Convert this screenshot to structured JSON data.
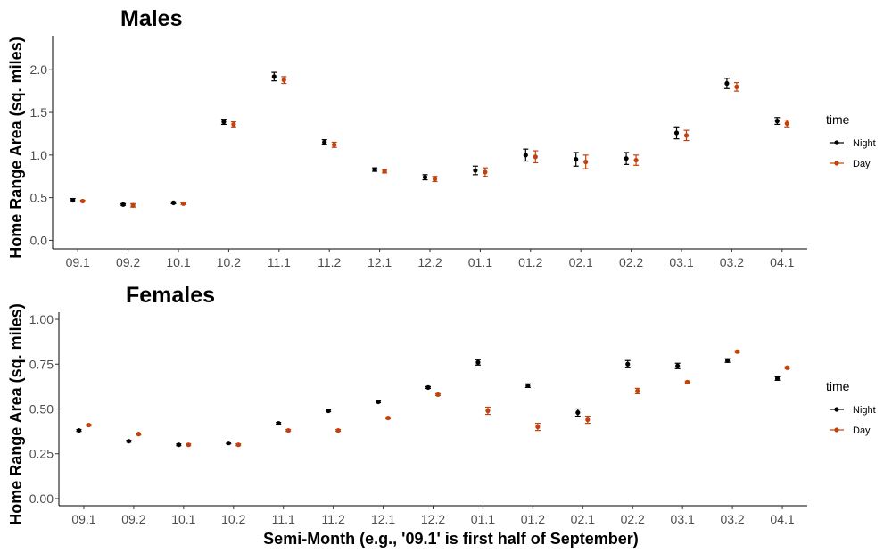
{
  "chart_data": [
    {
      "type": "scatter",
      "title": "Males",
      "ylabel": "Home Range Area (sq. miles)",
      "xlabel": "",
      "categories": [
        "09.1",
        "09.2",
        "10.1",
        "10.2",
        "11.1",
        "11.2",
        "12.1",
        "12.2",
        "01.1",
        "01.2",
        "02.1",
        "02.2",
        "03.1",
        "03.2",
        "04.1"
      ],
      "ylim": [
        -0.1,
        2.4
      ],
      "yticks": [
        0.0,
        0.5,
        1.0,
        1.5,
        2.0
      ],
      "ytick_labels": [
        "0.0",
        "0.5",
        "1.0",
        "1.5",
        "2.0"
      ],
      "legend_title": "time",
      "legend_position": "right",
      "grid": false,
      "series": [
        {
          "name": "Night",
          "color": "#000000",
          "values": [
            0.47,
            0.42,
            0.44,
            1.39,
            1.92,
            1.15,
            0.83,
            0.74,
            0.82,
            1.0,
            0.95,
            0.96,
            1.26,
            1.84,
            1.4
          ],
          "err": [
            0.02,
            0.01,
            0.01,
            0.03,
            0.05,
            0.03,
            0.02,
            0.03,
            0.05,
            0.07,
            0.08,
            0.07,
            0.07,
            0.06,
            0.04
          ]
        },
        {
          "name": "Day",
          "color": "#c0420d",
          "values": [
            0.46,
            0.41,
            0.43,
            1.36,
            1.88,
            1.12,
            0.81,
            0.72,
            0.8,
            0.98,
            0.92,
            0.94,
            1.23,
            1.8,
            1.37
          ],
          "err": [
            0.01,
            0.02,
            0.01,
            0.03,
            0.04,
            0.03,
            0.02,
            0.03,
            0.05,
            0.07,
            0.08,
            0.06,
            0.06,
            0.05,
            0.04
          ]
        }
      ]
    },
    {
      "type": "scatter",
      "title": "Females",
      "ylabel": "Home Range Area (sq. miles)",
      "xlabel": "Semi-Month (e.g., '09.1' is first half of September)",
      "categories": [
        "09.1",
        "09.2",
        "10.1",
        "10.2",
        "11.1",
        "11.2",
        "12.1",
        "12.2",
        "01.1",
        "01.2",
        "02.1",
        "02.2",
        "03.1",
        "03.2",
        "04.1"
      ],
      "ylim": [
        -0.04,
        1.04
      ],
      "yticks": [
        0.0,
        0.25,
        0.5,
        0.75,
        1.0
      ],
      "ytick_labels": [
        "0.00",
        "0.25",
        "0.50",
        "0.75",
        "1.00"
      ],
      "legend_title": "time",
      "legend_position": "right",
      "grid": false,
      "series": [
        {
          "name": "Night",
          "color": "#000000",
          "values": [
            0.38,
            0.32,
            0.3,
            0.31,
            0.42,
            0.49,
            0.54,
            0.62,
            0.76,
            0.63,
            0.48,
            0.75,
            0.74,
            0.77,
            0.67
          ],
          "err": [
            0.005,
            0.005,
            0.005,
            0.005,
            0.005,
            0.005,
            0.005,
            0.005,
            0.015,
            0.01,
            0.02,
            0.02,
            0.015,
            0.01,
            0.01
          ]
        },
        {
          "name": "Day",
          "color": "#c0420d",
          "values": [
            0.41,
            0.36,
            0.3,
            0.3,
            0.38,
            0.38,
            0.45,
            0.58,
            0.49,
            0.4,
            0.44,
            0.6,
            0.65,
            0.82,
            0.73
          ],
          "err": [
            0.005,
            0.005,
            0.005,
            0.005,
            0.005,
            0.005,
            0.005,
            0.005,
            0.02,
            0.02,
            0.02,
            0.015,
            0.005,
            0.005,
            0.005
          ]
        }
      ]
    }
  ]
}
